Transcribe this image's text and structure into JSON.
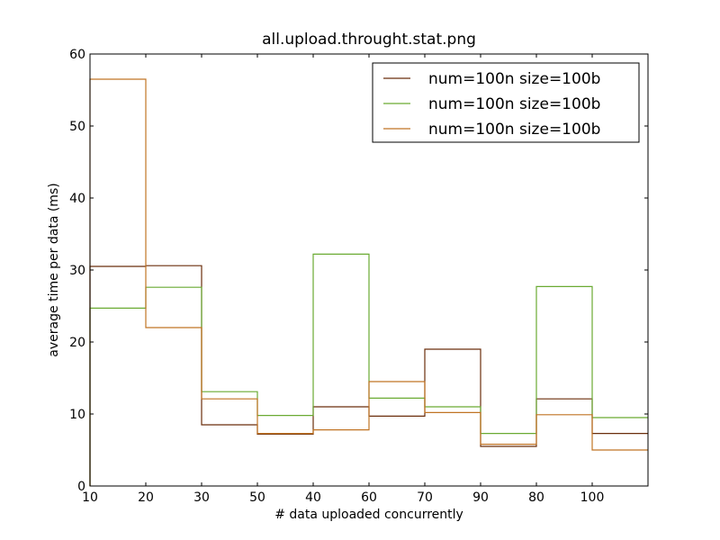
{
  "chart_data": {
    "type": "line",
    "title": "all.upload.throught.stat.png",
    "xlabel": "# data uploaded concurrently",
    "ylabel": "average time per data (ms)",
    "x_tick_labels": [
      "10",
      "20",
      "30",
      "50",
      "40",
      "60",
      "70",
      "90",
      "80",
      "100"
    ],
    "y_ticks": [
      0,
      10,
      20,
      30,
      40,
      50,
      60
    ],
    "ylim": [
      0,
      60
    ],
    "grid": false,
    "legend_position": "top-right",
    "series": [
      {
        "name": "num=100n size=100b",
        "color": "#6b2e0c",
        "values": [
          30.5,
          30.6,
          8.5,
          7.2,
          11.0,
          9.7,
          19.0,
          5.5,
          12.1,
          7.3
        ]
      },
      {
        "name": "num=100n size=100b",
        "color": "#6aaa32",
        "values": [
          24.7,
          27.6,
          13.1,
          9.8,
          32.2,
          12.2,
          11.0,
          7.3,
          27.7,
          9.5
        ]
      },
      {
        "name": "num=100n size=100b",
        "color": "#c07424",
        "values": [
          56.5,
          22.0,
          12.1,
          7.3,
          7.8,
          14.5,
          10.2,
          5.8,
          9.9,
          5.0
        ]
      }
    ]
  }
}
